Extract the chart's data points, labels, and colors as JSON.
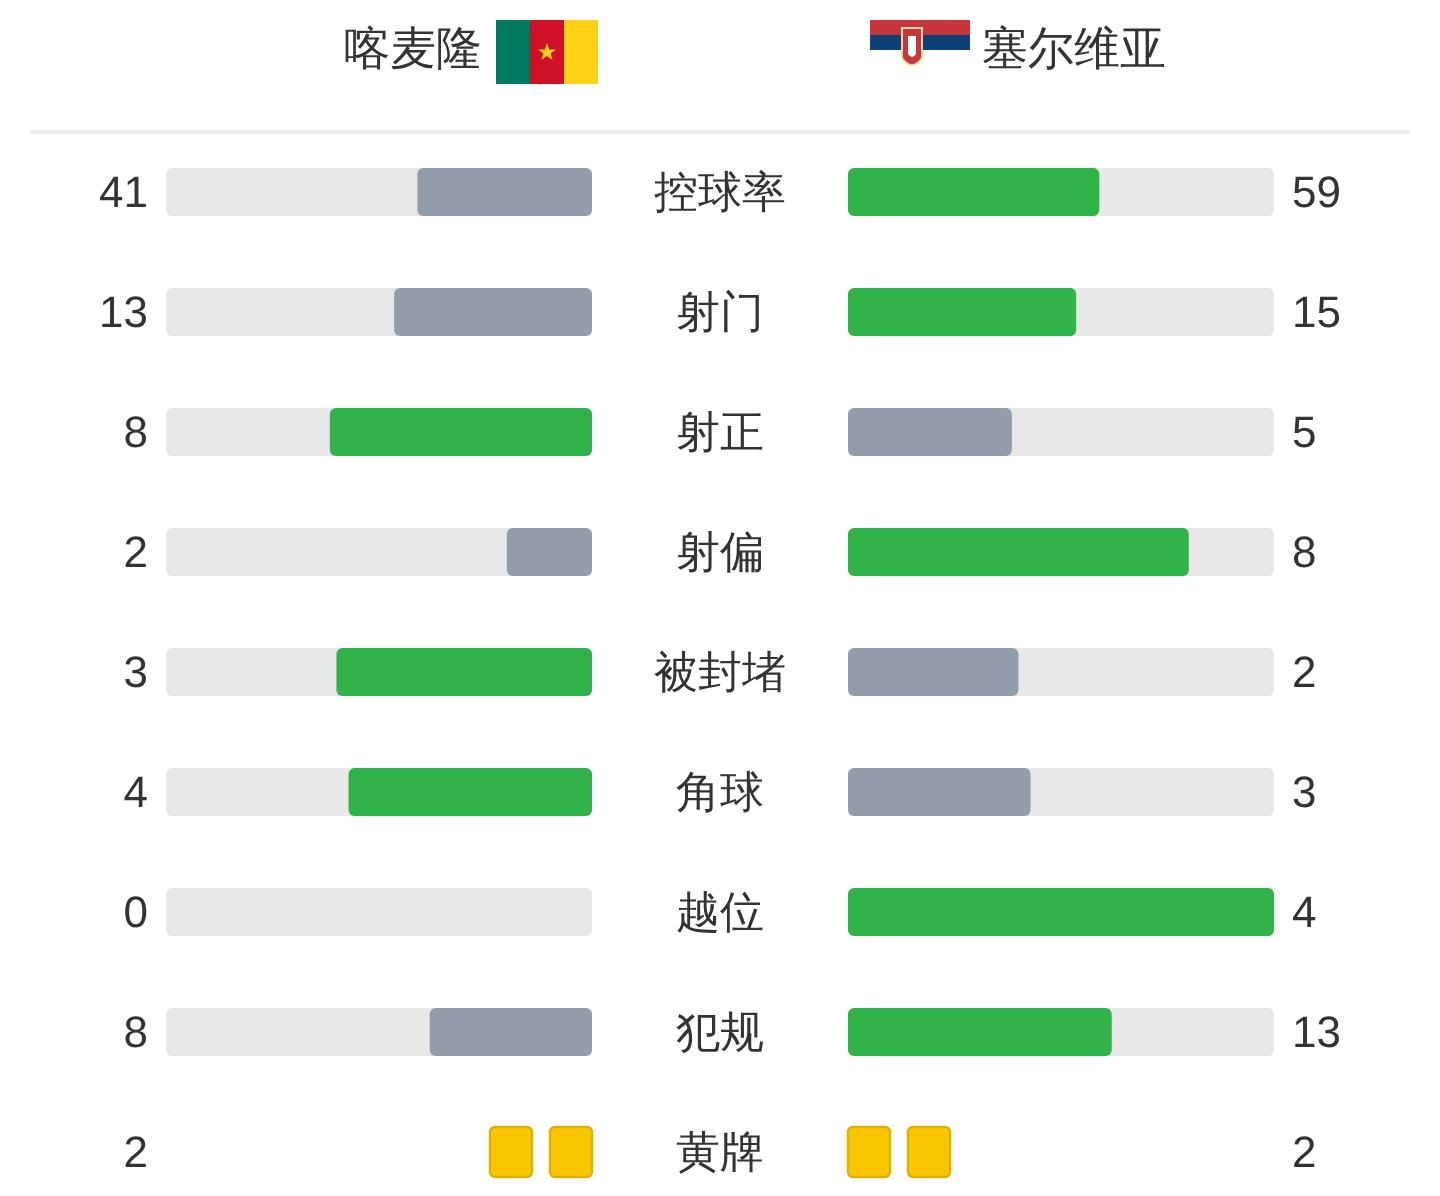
{
  "chart_data": [
    {
      "type": "other",
      "legend": "top",
      "data_labels": true,
      "categories": [
        "控球率",
        "射门",
        "射正",
        "射偏",
        "被封堵",
        "角球",
        "越位",
        "犯规"
      ],
      "series": [
        {
          "name": "喀麦隆",
          "colors": [
            "#939cab",
            "#939cab",
            "#32b34a",
            "#939cab",
            "#32b34a",
            "#32b34a",
            "#939cab",
            "#939cab"
          ],
          "values": [
            41,
            13,
            8,
            2,
            3,
            4,
            0,
            8
          ]
        },
        {
          "name": "塞尔维亚",
          "colors": [
            "#32b34a",
            "#32b34a",
            "#939cab",
            "#32b34a",
            "#939cab",
            "#939cab",
            "#32b34a",
            "#32b34a"
          ],
          "values": [
            59,
            15,
            5,
            8,
            2,
            3,
            4,
            13
          ]
        }
      ]
    },
    {
      "type": "other",
      "data_labels": true,
      "categories": [
        "黄牌"
      ],
      "series": [
        {
          "color": "#f8c700",
          "values": [
            2
          ]
        },
        {
          "color": "#f8c700",
          "values": [
            2
          ]
        }
      ]
    }
  ]
}
